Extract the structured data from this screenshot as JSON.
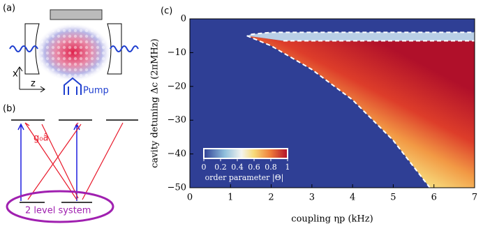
{
  "figure": {
    "panel_labels": [
      "(a)",
      "(b)",
      "(c)"
    ],
    "axis_x": "x",
    "axis_z": "z",
    "pump": "Pump",
    "coupling": "g₀â",
    "system": "2 level system"
  },
  "chart_data": {
    "type": "heatmap",
    "xlabel": "coupling ηp (kHz)",
    "ylabel": "cavity detuning Δc (2πMHz)",
    "xlim": [
      0,
      7
    ],
    "ylim": [
      -50,
      0
    ],
    "xticks": [
      0,
      1,
      2,
      3,
      4,
      5,
      6,
      7
    ],
    "yticks": [
      {
        "value": -50,
        "label": "−50"
      },
      {
        "value": -40,
        "label": "−40"
      },
      {
        "value": -30,
        "label": "−30"
      },
      {
        "value": -20,
        "label": "−20"
      },
      {
        "value": -10,
        "label": "−10"
      },
      0
    ],
    "boundaries": [
      {
        "x": [
          1.4,
          2,
          3,
          4,
          5,
          5.9
        ],
        "y": [
          -5,
          -8,
          -15,
          -24,
          -36,
          -50
        ]
      },
      {
        "x": [
          1.5,
          2,
          7
        ],
        "y": [
          -4.6,
          -4,
          -4
        ]
      },
      {
        "x": [
          2.3,
          7
        ],
        "y": [
          -6.5,
          -6.5
        ]
      }
    ],
    "colorbar": {
      "label": "order parameter |Θ|",
      "clim": [
        0,
        1
      ],
      "ticks": [
        0,
        0.2,
        0.4,
        0.6,
        0.8,
        1
      ]
    }
  }
}
